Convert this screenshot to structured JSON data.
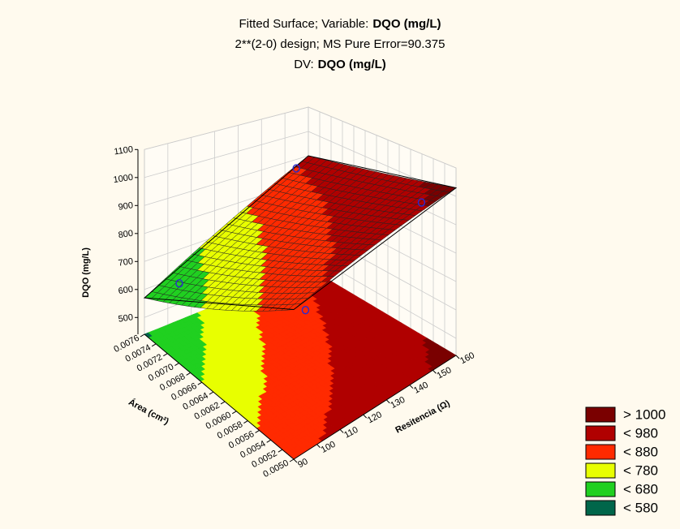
{
  "chart_data": {
    "type": "surface",
    "title": "Fitted Surface; Variable:",
    "title_variable": "DQO (mg/L)",
    "subtitle": "2**(2-0) design; MS Pure Error=90.375",
    "dv_label": "DV:",
    "dv": "DQO (mg/L)",
    "x_label": "Resitencia (Ω)",
    "y_label": "Área (cm²)",
    "z_label": "DQO (mg/L)",
    "xlim": [
      90,
      160
    ],
    "xticks": [
      90,
      100,
      110,
      120,
      130,
      140,
      150,
      160
    ],
    "ylim": [
      0.005,
      0.0076
    ],
    "yticks": [
      {
        "value": 0.005,
        "label": "0.0050"
      },
      {
        "value": 0.0052,
        "label": "0.0052"
      },
      {
        "value": 0.0054,
        "label": "0.0054"
      },
      {
        "value": 0.0056,
        "label": "0.0056"
      },
      {
        "value": 0.0058,
        "label": "0.0058"
      },
      {
        "value": 0.006,
        "label": "0.0060"
      },
      {
        "value": 0.0062,
        "label": "0.0062"
      },
      {
        "value": 0.0064,
        "label": "0.0064"
      },
      {
        "value": 0.0066,
        "label": "0.0066"
      },
      {
        "value": 0.0068,
        "label": "0.0068"
      },
      {
        "value": 0.007,
        "label": "0.0070"
      },
      {
        "value": 0.0072,
        "label": "0.0072"
      },
      {
        "value": 0.0074,
        "label": "0.0074"
      },
      {
        "value": 0.0076,
        "label": "0.0076"
      }
    ],
    "zlim": [
      440,
      1100
    ],
    "zticks": [
      500,
      600,
      700,
      800,
      900,
      1000,
      1100
    ],
    "surface": {
      "x": [
        90,
        160
      ],
      "y": [
        0.005,
        0.0076
      ],
      "z": [
        [
          850,
          570
        ],
        [
          1030,
          900
        ]
      ]
    },
    "points": {
      "x": [
        100,
        100,
        150,
        150
      ],
      "y": [
        0.0052,
        0.0074,
        0.0052,
        0.0074
      ],
      "z": [
        800,
        620,
        990,
        900
      ],
      "color": "#2a2ad0"
    },
    "legend": [
      {
        "value": 1000,
        "label": "> 1000",
        "color": "#7a0000"
      },
      {
        "value": 980,
        "label": "< 980",
        "color": "#b00000"
      },
      {
        "value": 880,
        "label": "< 880",
        "color": "#ff2a00"
      },
      {
        "value": 780,
        "label": "< 780",
        "color": "#e8ff00"
      },
      {
        "value": 680,
        "label": "< 680",
        "color": "#20d020"
      },
      {
        "value": 580,
        "label": "< 580",
        "color": "#00664a"
      }
    ],
    "grid": true
  }
}
